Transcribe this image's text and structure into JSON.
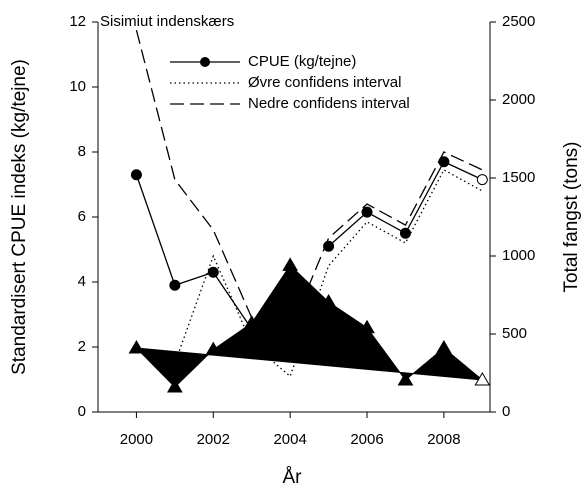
{
  "chart_data": {
    "type": "line",
    "annotation": "Sisimiut indenskærs",
    "xlabel": "År",
    "ylabel": "Standardisert CPUE indeks (kg/tejne)",
    "y2label": "Total fangst (tons)",
    "x": [
      2000,
      2001,
      2002,
      2003,
      2004,
      2005,
      2006,
      2007,
      2008,
      2009
    ],
    "series": [
      {
        "name": "CPUE (kg/tejne)",
        "color": "#000000",
        "style": "solid-circle",
        "values": [
          7.3,
          3.9,
          4.3,
          2.55,
          null,
          5.1,
          6.15,
          5.5,
          7.7,
          7.15
        ]
      },
      {
        "name": "Øvre confidens interval",
        "color": "#000000",
        "style": "dotted",
        "values": [
          1.9,
          1.5,
          4.8,
          2.1,
          1.1,
          4.5,
          5.85,
          5.2,
          7.45,
          6.8
        ]
      },
      {
        "name": "Nedre confidens interval",
        "color": "#000000",
        "style": "dashed",
        "values": [
          11.75,
          7.15,
          5.6,
          2.9,
          2.5,
          5.35,
          6.4,
          5.75,
          8,
          7.45
        ]
      },
      {
        "name": null,
        "color": "#000000",
        "style": "filled-triangle",
        "axis": "y2",
        "values": [
          410,
          160,
          400,
          570,
          940,
          705,
          540,
          205,
          410,
          205
        ]
      }
    ],
    "xlim": [
      1999,
      2009.2
    ],
    "xticks": [
      2000,
      2002,
      2004,
      2006,
      2008
    ],
    "ylim": [
      0,
      12
    ],
    "yticks": [
      0,
      2,
      4,
      6,
      8,
      10,
      12
    ],
    "y2lim": [
      0,
      2500
    ],
    "y2ticks": [
      0,
      500,
      1000,
      1500,
      2000,
      2500
    ],
    "legend": "upper center"
  }
}
